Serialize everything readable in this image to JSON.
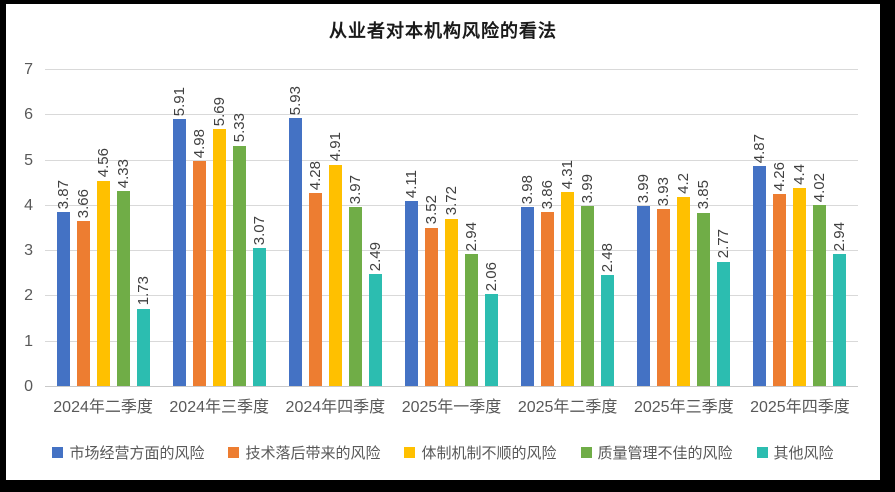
{
  "frame": {
    "border_color": "#000000",
    "background": "#ffffff"
  },
  "chart_data": {
    "type": "bar",
    "title": "从业者对本机构风险的看法",
    "categories": [
      "2024年二季度",
      "2024年三季度",
      "2024年四季度",
      "2025年一季度",
      "2025年二季度",
      "2025年三季度",
      "2025年四季度"
    ],
    "series": [
      {
        "name": "市场经营方面的风险",
        "color": "#4472C4",
        "values": [
          3.87,
          5.91,
          5.93,
          4.11,
          3.98,
          3.99,
          4.87
        ]
      },
      {
        "name": "技术落后带来的风险",
        "color": "#ED7D31",
        "values": [
          3.66,
          4.98,
          4.28,
          3.52,
          3.86,
          3.93,
          4.26
        ]
      },
      {
        "name": "体制机制不顺的风险",
        "color": "#FFC000",
        "values": [
          4.56,
          5.69,
          4.91,
          3.72,
          4.31,
          4.2,
          4.4
        ]
      },
      {
        "name": "质量管理不佳的风险",
        "color": "#70AD47",
        "values": [
          4.33,
          5.33,
          3.97,
          2.94,
          3.99,
          3.85,
          4.02
        ]
      },
      {
        "name": "其他风险",
        "color": "#2CBDB0",
        "values": [
          1.73,
          3.07,
          2.49,
          2.06,
          2.48,
          2.77,
          2.94
        ]
      }
    ],
    "ylim": [
      0,
      7
    ],
    "yticks": [
      0,
      1,
      2,
      3,
      4,
      5,
      6,
      7
    ],
    "grid": true,
    "gridline_color": "#d9d9d9",
    "data_labels": "rotated-90",
    "data_label_color": "#404040",
    "legend_position": "bottom"
  }
}
